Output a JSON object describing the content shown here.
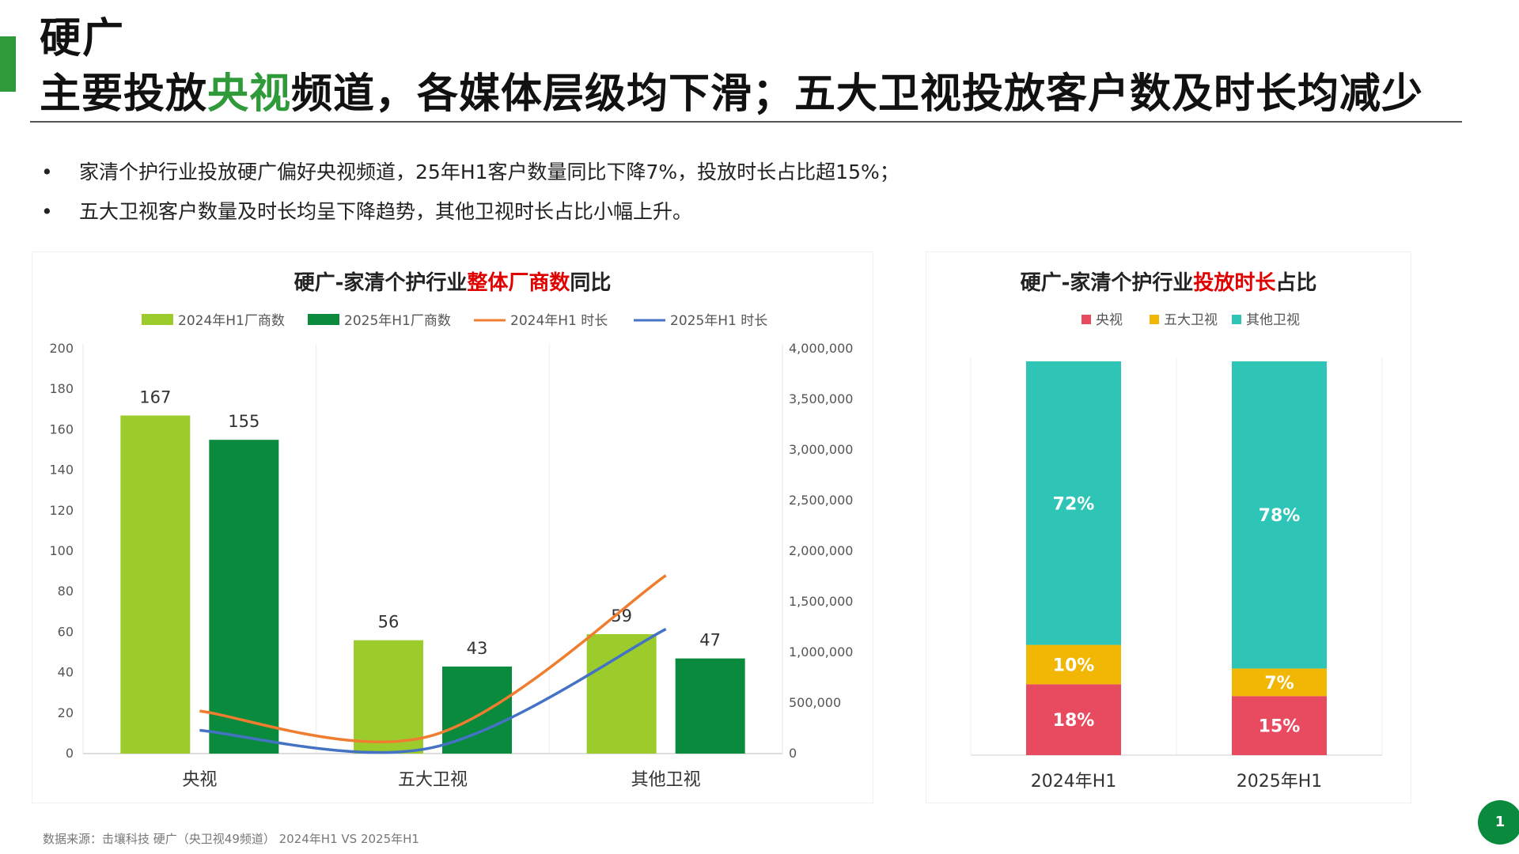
{
  "colors": {
    "accent_green": "#2e9a3a",
    "light_green": "#9ccc2c",
    "dark_green": "#0a8a3c",
    "orange": "#ef7d2f",
    "blue": "#4472c4",
    "red": "#e84a5f",
    "yellow": "#f2b705",
    "teal": "#2ec4b6"
  },
  "header": {
    "title_line1": "硬广",
    "title_line2_pre": "主要投放",
    "title_line2_hl": "央视",
    "title_line2_post": "频道，各媒体层级均下滑；五大卫视投放客户数及时长均减少"
  },
  "bullets": [
    {
      "dot": "•",
      "text": "家清个护行业投放硬广偏好央视频道，25年H1客户数量同比下降7%，投放时长占比超15%；"
    },
    {
      "dot": "•",
      "text": "五大卫视客户数量及时长均呈下降趋势，其他卫视时长占比小幅上升。"
    }
  ],
  "left_chart_title": {
    "pre": "硬广-家清个护行业",
    "hl": "整体厂商数",
    "post": "同比"
  },
  "right_chart_title": {
    "pre": "硬广-家清个护行业",
    "hl": "投放时长",
    "post": "占比"
  },
  "chart_data": [
    {
      "type": "bar",
      "title": "硬广-家清个护行业整体厂商数同比",
      "categories": [
        "央视",
        "五大卫视",
        "其他卫视"
      ],
      "series": [
        {
          "name": "2024年H1厂商数",
          "kind": "bar",
          "axis": "left",
          "values": [
            167,
            56,
            59
          ]
        },
        {
          "name": "2025年H1厂商数",
          "kind": "bar",
          "axis": "left",
          "values": [
            155,
            43,
            47
          ]
        },
        {
          "name": "2024年H1 时长",
          "kind": "line",
          "axis": "right",
          "values": [
            420000,
            180000,
            1760000
          ]
        },
        {
          "name": "2025年H1 时长",
          "kind": "line",
          "axis": "right",
          "values": [
            230000,
            60000,
            1230000
          ]
        }
      ],
      "y_left": {
        "min": 0,
        "max": 200,
        "ticks": [
          "0",
          "20",
          "40",
          "60",
          "80",
          "100",
          "120",
          "140",
          "160",
          "180",
          "200"
        ]
      },
      "y_right": {
        "min": 0,
        "max": 4000000,
        "ticks": [
          "0",
          "500,000",
          "1,000,000",
          "1,500,000",
          "2,000,000",
          "2,500,000",
          "3,000,000",
          "3,500,000",
          "4,000,000"
        ]
      },
      "legend": "top",
      "grid": false
    },
    {
      "type": "bar",
      "stacked": true,
      "title": "硬广-家清个护行业投放时长占比",
      "categories": [
        "2024年H1",
        "2025年H1"
      ],
      "series": [
        {
          "name": "央视",
          "values": [
            18,
            15
          ],
          "labels": [
            "18%",
            "15%"
          ]
        },
        {
          "name": "五大卫视",
          "values": [
            10,
            7
          ],
          "labels": [
            "10%",
            "7%"
          ]
        },
        {
          "name": "其他卫视",
          "values": [
            72,
            78
          ],
          "labels": [
            "72%",
            "78%"
          ]
        }
      ],
      "ylim": [
        0,
        100
      ],
      "legend": "top"
    }
  ],
  "footer": {
    "source": "数据来源：击壤科技 硬广（央卫视49频道） 2024年H1 VS 2025年H1",
    "page": "1"
  }
}
